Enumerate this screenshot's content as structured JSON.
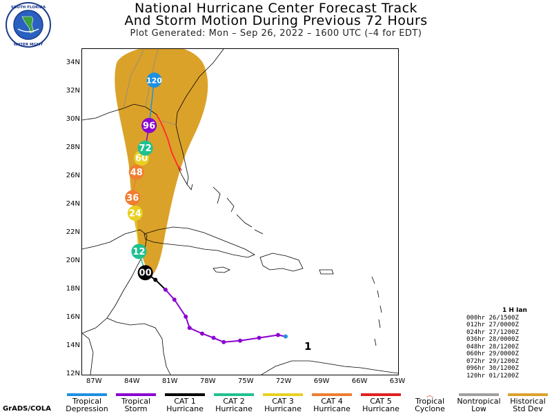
{
  "header": {
    "title_line1": "National Hurricane Center Forecast Track",
    "title_line2": "And Storm Motion During Previous 72 Hours",
    "generated": "Plot Generated:  Mon – Sep 26, 2022 – 1600 UTC  (–4 for EDT)"
  },
  "logo": {
    "text": "SOUTH FLORIDA WATER MANAGEMENT DISTRICT"
  },
  "axes": {
    "lat_labels": [
      "34N",
      "32N",
      "30N",
      "28N",
      "26N",
      "24N",
      "22N",
      "20N",
      "18N",
      "16N",
      "14N",
      "12N"
    ],
    "lon_labels": [
      "87W",
      "84W",
      "81W",
      "78W",
      "75W",
      "72W",
      "69W",
      "66W",
      "63W"
    ]
  },
  "forecast_points": [
    {
      "label": "00",
      "hour": 0,
      "category": "CAT 1 Hurricane",
      "color": "#000000",
      "lon": -83.0,
      "lat": 19.2
    },
    {
      "label": "12",
      "hour": 12,
      "category": "CAT 2 Hurricane",
      "color": "#20c090",
      "lon": -83.5,
      "lat": 20.7
    },
    {
      "label": "24",
      "hour": 24,
      "category": "CAT 3 Hurricane",
      "color": "#e8d020",
      "lon": -83.8,
      "lat": 23.4
    },
    {
      "label": "36",
      "hour": 36,
      "category": "CAT 4 Hurricane",
      "color": "#f07d30",
      "lon": -84.0,
      "lat": 24.5
    },
    {
      "label": "48",
      "hour": 48,
      "category": "CAT 4 Hurricane",
      "color": "#f07d30",
      "lon": -83.7,
      "lat": 26.3
    },
    {
      "label": "60",
      "hour": 60,
      "category": "CAT 3 Hurricane",
      "color": "#e8d020",
      "lon": -83.3,
      "lat": 27.3
    },
    {
      "label": "72",
      "hour": 72,
      "category": "CAT 2 Hurricane",
      "color": "#20c090",
      "lon": -83.0,
      "lat": 28.0
    },
    {
      "label": "96",
      "hour": 96,
      "category": "Tropical Storm",
      "color": "#8a00d0",
      "lon": -82.7,
      "lat": 29.6
    },
    {
      "label": "120",
      "hour": 120,
      "category": "Tropical Depression",
      "color": "#1e90e0",
      "lon": -82.3,
      "lat": 32.8
    }
  ],
  "past_track": [
    {
      "lon": -71.9,
      "lat": 14.7,
      "color": "#1e90e0"
    },
    {
      "lon": -72.5,
      "lat": 14.8,
      "color": "#8a00d0"
    },
    {
      "lon": -74.0,
      "lat": 14.6,
      "color": "#8a00d0"
    },
    {
      "lon": -75.5,
      "lat": 14.4,
      "color": "#8a00d0"
    },
    {
      "lon": -76.8,
      "lat": 14.3,
      "color": "#8a00d0"
    },
    {
      "lon": -77.6,
      "lat": 14.6,
      "color": "#8a00d0"
    },
    {
      "lon": -78.5,
      "lat": 14.9,
      "color": "#8a00d0"
    },
    {
      "lon": -79.5,
      "lat": 15.3,
      "color": "#8a00d0"
    },
    {
      "lon": -79.8,
      "lat": 16.1,
      "color": "#8a00d0"
    },
    {
      "lon": -80.7,
      "lat": 17.3,
      "color": "#8a00d0"
    },
    {
      "lon": -81.4,
      "lat": 18.0,
      "color": "#8a00d0"
    },
    {
      "lon": -82.2,
      "lat": 18.7,
      "color": "#000000"
    },
    {
      "lon": -83.0,
      "lat": 19.2,
      "color": "#000000"
    }
  ],
  "storm_number": "1",
  "key": {
    "title": "1 H Ian",
    "rows": [
      "000hr 26/1500Z",
      "012hr 27/0000Z",
      "024hr 27/1200Z",
      "036hr 28/0000Z",
      "048hr 28/1200Z",
      "060hr 29/0000Z",
      "072hr 29/1200Z",
      "096hr 30/1200Z",
      "120hr 01/1200Z"
    ]
  },
  "legend": [
    {
      "line1": "Tropical",
      "line2": "Depression",
      "color": "#1e90e0",
      "type": "bar"
    },
    {
      "line1": "Tropical",
      "line2": "Storm",
      "color": "#8a00d0",
      "type": "bar"
    },
    {
      "line1": "CAT 1",
      "line2": "Hurricane",
      "color": "#000000",
      "type": "bar"
    },
    {
      "line1": "CAT 2",
      "line2": "Hurricane",
      "color": "#20c090",
      "type": "bar"
    },
    {
      "line1": "CAT 3",
      "line2": "Hurricane",
      "color": "#e8d020",
      "type": "bar"
    },
    {
      "line1": "CAT 4",
      "line2": "Hurricane",
      "color": "#f07d30",
      "type": "bar"
    },
    {
      "line1": "CAT 5",
      "line2": "Hurricane",
      "color": "#e02020",
      "type": "bar"
    },
    {
      "line1": "Tropical",
      "line2": "Cyclone",
      "color": "#e02020",
      "type": "symbol"
    },
    {
      "line1": "Nontropical",
      "line2": "Low",
      "color": "#a0a0a0",
      "type": "bar"
    },
    {
      "line1": "Historical",
      "line2": "Std Dev",
      "color": "#dba22a",
      "type": "bar"
    }
  ],
  "footer": {
    "credit": "GrADS/COLA"
  },
  "colors": {
    "cone": "#dba22a",
    "watch_warning": "#ff3030"
  }
}
